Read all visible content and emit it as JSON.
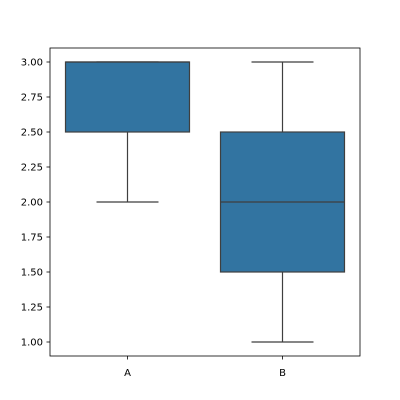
{
  "chart_data": {
    "type": "box",
    "title": "",
    "xlabel": "",
    "ylabel": "",
    "categories": [
      "A",
      "B"
    ],
    "boxes": [
      {
        "category": "A",
        "min": 2.0,
        "q1": 2.5,
        "median": 3.0,
        "q3": 3.0,
        "max": 3.0
      },
      {
        "category": "B",
        "min": 1.0,
        "q1": 1.5,
        "median": 2.0,
        "q3": 2.5,
        "max": 3.0
      }
    ],
    "ylim": [
      0.9,
      3.1
    ],
    "yticks": [
      1.0,
      1.25,
      1.5,
      1.75,
      2.0,
      2.25,
      2.5,
      2.75,
      3.0
    ],
    "ytick_labels": [
      "1.00",
      "1.25",
      "1.50",
      "1.75",
      "2.00",
      "2.25",
      "2.50",
      "2.75",
      "3.00"
    ],
    "grid": false,
    "box_color": "#3274a1",
    "line_color": "#3f3f3f"
  }
}
